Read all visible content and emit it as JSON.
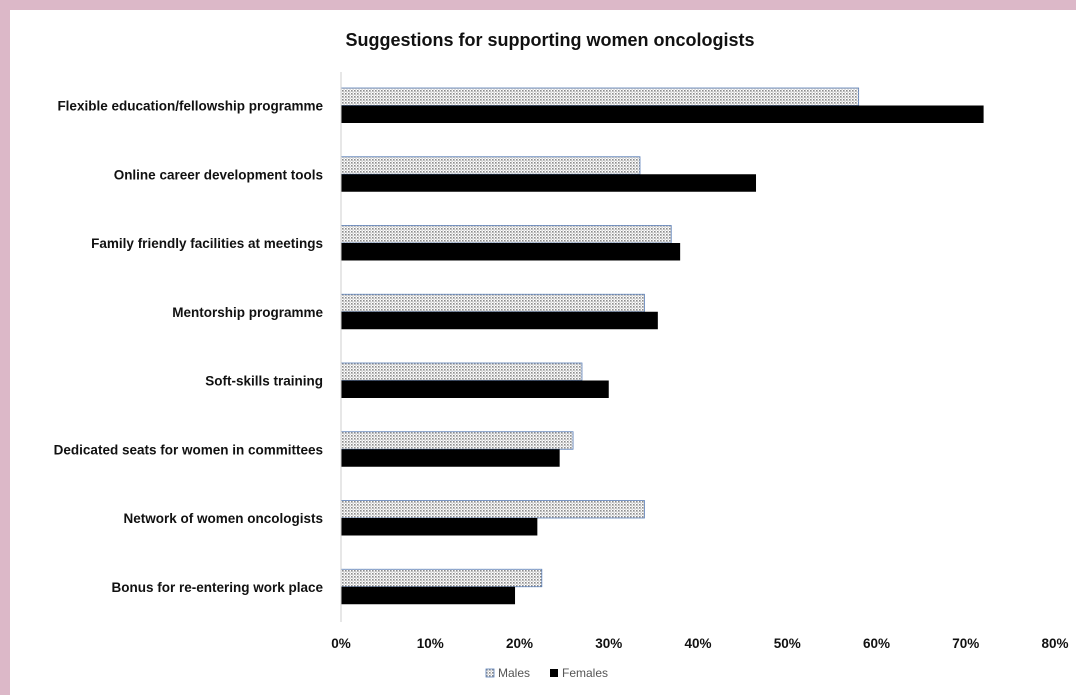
{
  "chart_data": {
    "type": "bar",
    "orientation": "horizontal",
    "title": "Suggestions for supporting women oncologists",
    "categories": [
      "Flexible education/fellowship programme",
      "Online career development tools",
      "Family friendly facilities at meetings",
      "Mentorship programme",
      "Soft-skills training",
      "Dedicated seats for women in committees",
      "Network of women oncologists",
      "Bonus for re-entering work place"
    ],
    "series": [
      {
        "name": "Males",
        "values": [
          58,
          33.5,
          37,
          34,
          27,
          26,
          34,
          22.5
        ],
        "pattern": "dotted",
        "color": "#9a9a9a"
      },
      {
        "name": "Females",
        "values": [
          72,
          46.5,
          38,
          35.5,
          30,
          24.5,
          22,
          19.5
        ],
        "pattern": "solid",
        "color": "#000000"
      }
    ],
    "xlim": [
      0,
      80
    ],
    "xticks": [
      "0%",
      "10%",
      "20%",
      "30%",
      "40%",
      "50%",
      "60%",
      "70%",
      "80%"
    ],
    "grid": false,
    "legend_position": "bottom"
  }
}
